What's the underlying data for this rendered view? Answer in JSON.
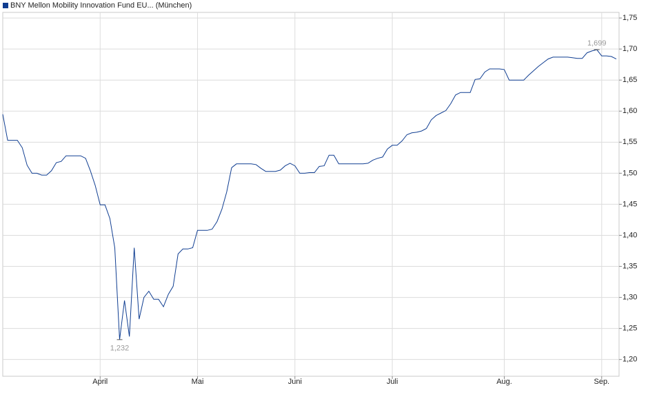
{
  "chart_data": {
    "type": "line",
    "categories": [
      null,
      null,
      null,
      null,
      null,
      null,
      null,
      null,
      null,
      null,
      null,
      null,
      null,
      null,
      null,
      null,
      null,
      null,
      null,
      null,
      "April",
      null,
      null,
      null,
      null,
      null,
      null,
      null,
      null,
      null,
      null,
      null,
      null,
      null,
      null,
      null,
      null,
      null,
      null,
      null,
      "Mai",
      null,
      null,
      null,
      null,
      null,
      null,
      null,
      null,
      null,
      null,
      null,
      null,
      null,
      null,
      null,
      null,
      null,
      null,
      null,
      "Juni",
      null,
      null,
      null,
      null,
      null,
      null,
      null,
      null,
      null,
      null,
      null,
      null,
      null,
      null,
      null,
      null,
      null,
      null,
      null,
      "Juli",
      null,
      null,
      null,
      null,
      null,
      null,
      null,
      null,
      null,
      null,
      null,
      null,
      null,
      null,
      null,
      null,
      null,
      null,
      null,
      null,
      null,
      null,
      "Aug.",
      null,
      null,
      null,
      null,
      null,
      null,
      null,
      null,
      null,
      null,
      null,
      null,
      null,
      null,
      null,
      null,
      null,
      null,
      null,
      "Sep.",
      null,
      null,
      null
    ],
    "series": [
      {
        "name": "BNY Mellon Mobility Innovation Fund EU... (München)",
        "color": "#0f3d91",
        "values": [
          1.595,
          1.553,
          1.553,
          1.553,
          1.541,
          1.513,
          1.5,
          1.5,
          1.497,
          1.497,
          1.504,
          1.517,
          1.519,
          1.528,
          1.528,
          1.528,
          1.528,
          1.524,
          1.504,
          1.48,
          1.449,
          1.449,
          1.427,
          1.38,
          1.232,
          1.295,
          1.237,
          1.38,
          1.265,
          1.3,
          1.31,
          1.297,
          1.297,
          1.285,
          1.305,
          1.318,
          1.37,
          1.378,
          1.378,
          1.38,
          1.408,
          1.408,
          1.408,
          1.41,
          1.422,
          1.442,
          1.47,
          1.509,
          1.515,
          1.515,
          1.515,
          1.515,
          1.514,
          1.508,
          1.503,
          1.503,
          1.503,
          1.505,
          1.512,
          1.516,
          1.512,
          1.5,
          1.5,
          1.501,
          1.501,
          1.511,
          1.512,
          1.529,
          1.529,
          1.515,
          1.515,
          1.515,
          1.515,
          1.515,
          1.515,
          1.516,
          1.521,
          1.524,
          1.526,
          1.539,
          1.545,
          1.545,
          1.552,
          1.562,
          1.565,
          1.566,
          1.568,
          1.572,
          1.586,
          1.593,
          1.597,
          1.601,
          1.612,
          1.626,
          1.63,
          1.63,
          1.63,
          1.651,
          1.652,
          1.663,
          1.668,
          1.668,
          1.668,
          1.667,
          1.65,
          1.65,
          1.65,
          1.65,
          1.658,
          1.665,
          1.672,
          1.678,
          1.684,
          1.687,
          1.687,
          1.687,
          1.687,
          1.686,
          1.685,
          1.685,
          1.694,
          1.697,
          1.699,
          1.689,
          1.689,
          1.688,
          1.684
        ],
        "value_labels": [
          null,
          null,
          null,
          null,
          null,
          null,
          null,
          null,
          null,
          null,
          null,
          null,
          null,
          null,
          null,
          null,
          null,
          null,
          null,
          null,
          null,
          null,
          null,
          null,
          "1,232",
          null,
          null,
          null,
          null,
          null,
          null,
          null,
          null,
          null,
          null,
          null,
          null,
          null,
          null,
          null,
          null,
          null,
          null,
          null,
          null,
          null,
          null,
          null,
          null,
          null,
          null,
          null,
          null,
          null,
          null,
          null,
          null,
          null,
          null,
          null,
          null,
          null,
          null,
          null,
          null,
          null,
          null,
          null,
          null,
          null,
          null,
          null,
          null,
          null,
          null,
          null,
          null,
          null,
          null,
          null,
          null,
          null,
          null,
          null,
          null,
          null,
          null,
          null,
          null,
          null,
          null,
          null,
          null,
          null,
          null,
          null,
          null,
          null,
          null,
          null,
          null,
          null,
          null,
          null,
          null,
          null,
          null,
          null,
          null,
          null,
          null,
          null,
          null,
          null,
          null,
          null,
          null,
          null,
          null,
          null,
          null,
          null,
          "1,699",
          null,
          null,
          null,
          null
        ]
      }
    ],
    "ylim": [
      1.173,
      1.759
    ],
    "yticks": [
      {
        "value": 1.2,
        "label": "1,20"
      },
      {
        "value": 1.25,
        "label": "1,25"
      },
      {
        "value": 1.3,
        "label": "1,30"
      },
      {
        "value": 1.35,
        "label": "1,35"
      },
      {
        "value": 1.4,
        "label": "1,40"
      },
      {
        "value": 1.45,
        "label": "1,45"
      },
      {
        "value": 1.5,
        "label": "1,50"
      },
      {
        "value": 1.55,
        "label": "1,55"
      },
      {
        "value": 1.6,
        "label": "1,60"
      },
      {
        "value": 1.65,
        "label": "1,65"
      },
      {
        "value": 1.7,
        "label": "1,70"
      },
      {
        "value": 1.75,
        "label": "1,75"
      }
    ],
    "grid": true
  }
}
